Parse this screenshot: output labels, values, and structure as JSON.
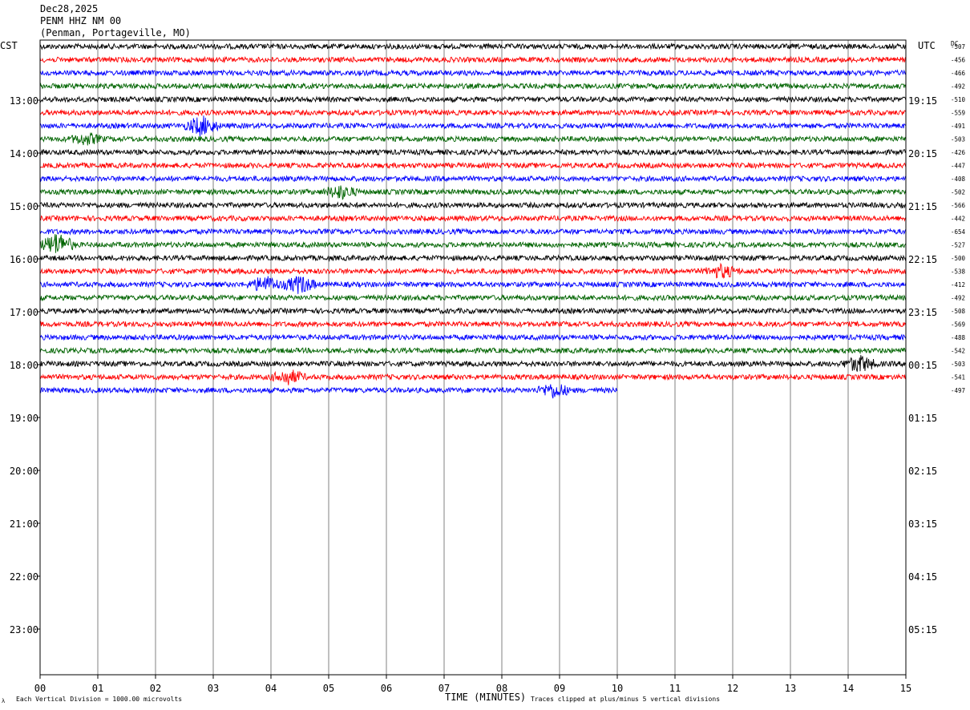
{
  "header": {
    "date": "Dec28,2025",
    "station": "PENM HHZ NM 00",
    "location": "(Penman, Portageville, MO)"
  },
  "timezones": {
    "left": "CST",
    "right": "UTC",
    "dc": "DC"
  },
  "footer": {
    "xlabel": "TIME (MINUTES)",
    "division": "Each Vertical Division = 1000.00 microvolts",
    "clipped": "Traces clipped at plus/minus 5 vertical divisions",
    "mark": "λ"
  },
  "chart_data": {
    "type": "line",
    "title": "PENM HHZ NM 00",
    "xlabel": "TIME (MINUTES)",
    "ylabel": "",
    "x_ticks": [
      "00",
      "01",
      "02",
      "03",
      "04",
      "05",
      "06",
      "07",
      "08",
      "09",
      "10",
      "11",
      "12",
      "13",
      "14",
      "15"
    ],
    "xlim": [
      0,
      15
    ],
    "left_hour_labels": [
      "13:00",
      "14:00",
      "15:00",
      "16:00",
      "17:00",
      "18:00",
      "19:00",
      "20:00",
      "21:00",
      "22:00",
      "23:00"
    ],
    "right_hour_labels": [
      "19:15",
      "20:15",
      "21:15",
      "22:15",
      "23:15",
      "00:15",
      "01:15",
      "02:15",
      "03:15",
      "04:15",
      "05:15"
    ],
    "row_start_minutes_before_first_label": 60,
    "rows_per_hour": 4,
    "trace_colors": [
      "#000000",
      "#ff0000",
      "#0000ff",
      "#006400"
    ],
    "dc_offsets": [
      -507,
      -456,
      -466,
      -492,
      -510,
      -559,
      -491,
      -503,
      -426,
      -447,
      -408,
      -502,
      -566,
      -442,
      -654,
      -527,
      -500,
      -538,
      -412,
      -492,
      -508,
      -569,
      -488,
      -542,
      -503,
      -541,
      -497
    ],
    "traces_recorded": 27,
    "last_trace_end_minute": 10,
    "events": [
      {
        "row": 6,
        "minute": 2.8,
        "strength": 2.2
      },
      {
        "row": 7,
        "minute": 0.8,
        "strength": 1.2
      },
      {
        "row": 11,
        "minute": 5.2,
        "strength": 1.5
      },
      {
        "row": 15,
        "minute": 0.3,
        "strength": 2.6
      },
      {
        "row": 18,
        "minute": 3.9,
        "strength": 1.8
      },
      {
        "row": 18,
        "minute": 4.5,
        "strength": 2.0
      },
      {
        "row": 17,
        "minute": 11.8,
        "strength": 1.4
      },
      {
        "row": 24,
        "minute": 14.2,
        "strength": 1.8
      },
      {
        "row": 25,
        "minute": 4.3,
        "strength": 1.6
      },
      {
        "row": 26,
        "minute": 8.9,
        "strength": 1.6
      }
    ],
    "division_microvolts": 1000.0,
    "clip_divisions": 5
  }
}
